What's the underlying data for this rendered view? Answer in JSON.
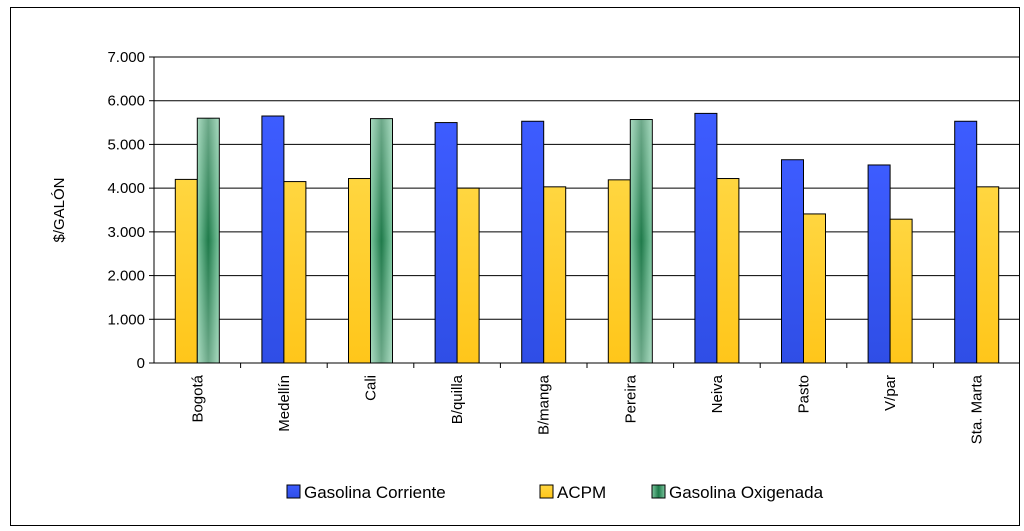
{
  "chart_data": {
    "type": "bar",
    "ylabel": "$/GALÓN",
    "ylim": [
      0,
      7000
    ],
    "yticks": [
      0,
      1000,
      2000,
      3000,
      4000,
      5000,
      6000,
      7000
    ],
    "ytick_labels": [
      "0",
      "1.000",
      "2.000",
      "3.000",
      "4.000",
      "5.000",
      "6.000",
      "7.000"
    ],
    "grid": true,
    "legend_position": "bottom",
    "categories": [
      "Bogotá",
      "Medellín",
      "Cali",
      "B/quilla",
      "B/manga",
      "Pereira",
      "Neiva",
      "Pasto",
      "V/par",
      "Sta. Marta"
    ],
    "series": [
      {
        "name": "Gasolina Corriente",
        "color": "#3355ee",
        "values": [
          null,
          5650,
          null,
          5500,
          5530,
          null,
          5710,
          4650,
          4530,
          5530
        ]
      },
      {
        "name": "ACPM",
        "color": "#ffcc22",
        "values": [
          4200,
          4150,
          4220,
          4000,
          4030,
          4190,
          4220,
          3410,
          3290,
          4030
        ]
      },
      {
        "name": "Gasolina Oxigenada",
        "color": "#339966",
        "values": [
          5600,
          null,
          5590,
          null,
          null,
          5570,
          null,
          null,
          null,
          null
        ]
      }
    ]
  }
}
